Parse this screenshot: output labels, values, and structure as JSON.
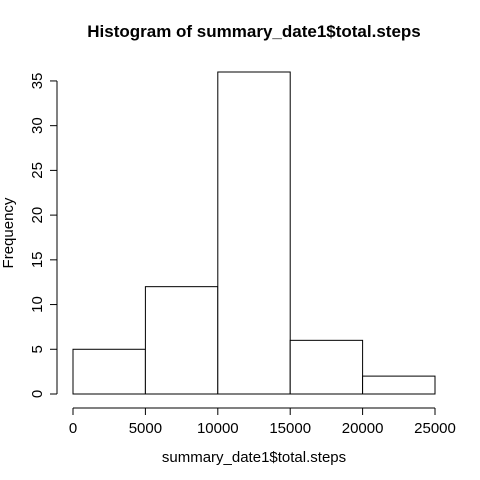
{
  "chart_data": {
    "type": "bar",
    "title": "Histogram of summary_date1$total.steps",
    "xlabel": "summary_date1$total.steps",
    "ylabel": "Frequency",
    "bins": [
      {
        "from": 0,
        "to": 5000,
        "count": 5
      },
      {
        "from": 5000,
        "to": 10000,
        "count": 12
      },
      {
        "from": 10000,
        "to": 15000,
        "count": 36
      },
      {
        "from": 15000,
        "to": 20000,
        "count": 6
      },
      {
        "from": 20000,
        "to": 25000,
        "count": 2
      }
    ],
    "xlim": [
      0,
      25000
    ],
    "ylim": [
      0,
      36
    ],
    "x_ticks": [
      0,
      5000,
      10000,
      15000,
      20000,
      25000
    ],
    "y_ticks": [
      0,
      5,
      10,
      15,
      20,
      25,
      30,
      35
    ],
    "grid": false,
    "bar_fill": "#ffffff",
    "bar_stroke": "#000000"
  }
}
